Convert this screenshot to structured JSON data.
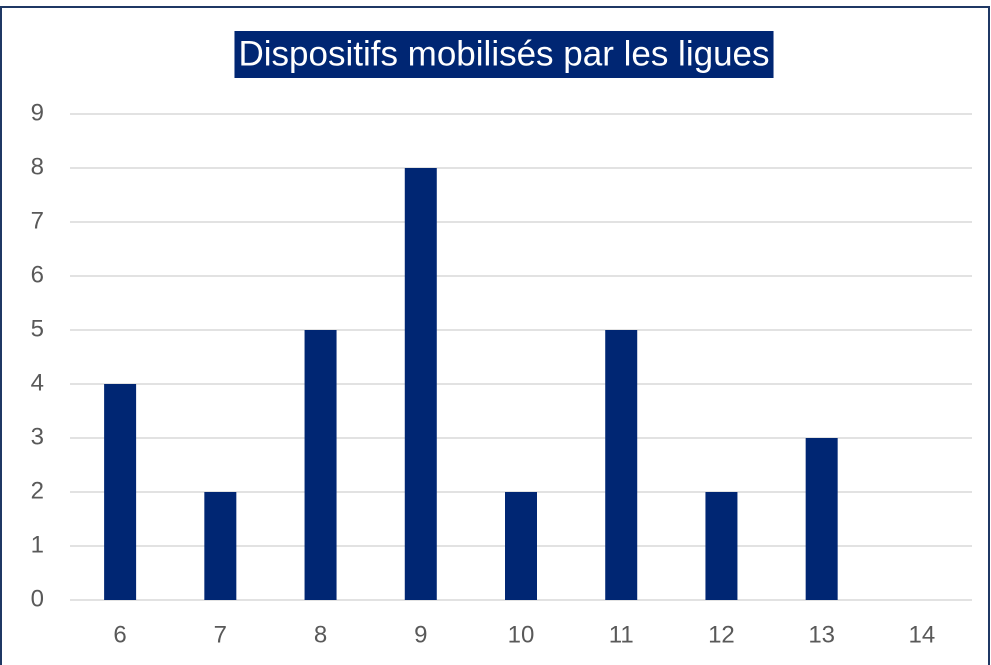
{
  "chart_data": {
    "type": "bar",
    "title": "Dispositifs mobilisés par les ligues",
    "categories": [
      "6",
      "7",
      "8",
      "9",
      "10",
      "11",
      "12",
      "13",
      "14"
    ],
    "values": [
      4,
      2,
      5,
      8,
      2,
      5,
      2,
      3,
      0
    ],
    "color": "#002673",
    "ylim": [
      0,
      9
    ],
    "yticks": [
      0,
      1,
      2,
      3,
      4,
      5,
      6,
      7,
      8,
      9
    ],
    "grid": true
  }
}
